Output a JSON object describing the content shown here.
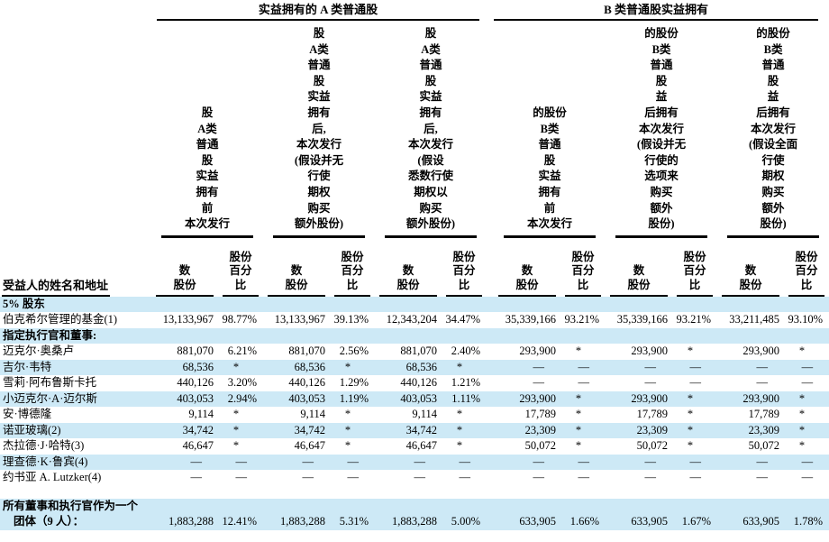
{
  "colors": {
    "row_stripe": "#cde9f6",
    "text": "#000000",
    "background": "#ffffff"
  },
  "table": {
    "group_a_title": "实益拥有的 A 类普通股",
    "group_b_title": "B 类普通股实益拥有",
    "columns": [
      {
        "id": "class-a-before-offering",
        "header_lines": [
          "股",
          "A类",
          "普通",
          "股",
          "实益",
          "拥有",
          "前",
          "本次发行"
        ]
      },
      {
        "id": "class-a-after-no-option-exercise",
        "header_lines": [
          "股",
          "A类",
          "普通",
          "股",
          "实益",
          "拥有",
          "后,",
          "本次发行",
          "(假设并无",
          "行使",
          "期权",
          "购买",
          "额外股份)"
        ]
      },
      {
        "id": "class-a-after-full-option-exercise",
        "header_lines": [
          "股",
          "A类",
          "普通",
          "股",
          "实益",
          "拥有",
          "后,",
          "本次发行",
          "(假设",
          "悉数行使",
          "期权以",
          "购买",
          "额外股份)"
        ]
      },
      {
        "id": "class-b-before-offering",
        "header_lines": [
          "的股份",
          "B类",
          "普通",
          "股",
          "实益",
          "拥有",
          "前",
          "本次发行"
        ]
      },
      {
        "id": "class-b-after-no-option-exercise",
        "header_lines": [
          "的股份",
          "B类",
          "普通",
          "股",
          "益",
          "后拥有",
          "本次发行",
          "(假设并无",
          "行使的",
          "选项来",
          "购买",
          "额外",
          "股份)"
        ]
      },
      {
        "id": "class-b-after-full-option-exercise",
        "header_lines": [
          "的股份",
          "B类",
          "普通",
          "股",
          "益",
          "后拥有",
          "本次发行",
          "(假设全面",
          "行使",
          "期权",
          "购买",
          "额外",
          "股份)"
        ]
      }
    ],
    "subheaders": {
      "name": "受益人的姓名和地址",
      "num_lines": [
        "数",
        "股份"
      ],
      "pct_lines": [
        "股份",
        "百分",
        "比"
      ]
    },
    "rows": [
      {
        "type": "section",
        "label": "5% 股东",
        "shaded": true
      },
      {
        "type": "data",
        "label": "伯克希尔管理的基金(1)",
        "shaded": false,
        "values": [
          "13,133,967",
          "98.77%",
          "13,133,967",
          "39.13%",
          "12,343,204",
          "34.47%",
          "35,339,166",
          "93.21%",
          "35,339,166",
          "93.21%",
          "33,211,485",
          "93.10%"
        ]
      },
      {
        "type": "section",
        "label": "指定执行官和董事:",
        "shaded": true
      },
      {
        "type": "data",
        "label": "迈克尔·奥桑卢",
        "shaded": false,
        "values": [
          "881,070",
          "6.21%",
          "881,070",
          "2.56%",
          "881,070",
          "2.40%",
          "293,900",
          "*",
          "293,900",
          "*",
          "293,900",
          "*"
        ]
      },
      {
        "type": "data",
        "label": "吉尔·韦特",
        "shaded": true,
        "values": [
          "68,536",
          "*",
          "68,536",
          "*",
          "68,536",
          "*",
          "—",
          "—",
          "—",
          "—",
          "—",
          "—"
        ]
      },
      {
        "type": "data",
        "label": "雪莉·阿布鲁斯卡托",
        "shaded": false,
        "values": [
          "440,126",
          "3.20%",
          "440,126",
          "1.29%",
          "440,126",
          "1.21%",
          "—",
          "—",
          "—",
          "—",
          "—",
          "—"
        ]
      },
      {
        "type": "data",
        "label": "小迈克尔·A·迈尔斯",
        "shaded": true,
        "values": [
          "403,053",
          "2.94%",
          "403,053",
          "1.19%",
          "403,053",
          "1.11%",
          "293,900",
          "*",
          "293,900",
          "*",
          "293,900",
          "*"
        ]
      },
      {
        "type": "data",
        "label": "安·博德隆",
        "shaded": false,
        "values": [
          "9,114",
          "*",
          "9,114",
          "*",
          "9,114",
          "*",
          "17,789",
          "*",
          "17,789",
          "*",
          "17,789",
          "*"
        ]
      },
      {
        "type": "data",
        "label": "诺亚玻璃(2)",
        "shaded": true,
        "values": [
          "34,742",
          "*",
          "34,742",
          "*",
          "34,742",
          "*",
          "23,309",
          "*",
          "23,309",
          "*",
          "23,309",
          "*"
        ]
      },
      {
        "type": "data",
        "label": "杰拉德·J·哈特(3)",
        "shaded": false,
        "values": [
          "46,647",
          "*",
          "46,647",
          "*",
          "46,647",
          "*",
          "50,072",
          "*",
          "50,072",
          "*",
          "50,072",
          "*"
        ]
      },
      {
        "type": "data",
        "label": "理查德·K·鲁宾(4)",
        "shaded": true,
        "values": [
          "—",
          "—",
          "—",
          "—",
          "—",
          "—",
          "—",
          "—",
          "—",
          "—",
          "—",
          "—"
        ]
      },
      {
        "type": "data",
        "label": "约书亚 A. Lutzker(4)",
        "shaded": false,
        "values": [
          "—",
          "—",
          "—",
          "—",
          "—",
          "—",
          "—",
          "—",
          "—",
          "—",
          "—",
          "—"
        ]
      },
      {
        "type": "spacer"
      },
      {
        "type": "total",
        "label_lines": [
          "所有董事和执行官作为一个",
          "团体（9 人）："
        ],
        "shaded": true,
        "values": [
          "1,883,288",
          "12.41%",
          "1,883,288",
          "5.31%",
          "1,883,288",
          "5.00%",
          "633,905",
          "1.66%",
          "633,905",
          "1.67%",
          "633,905",
          "1.78%"
        ]
      }
    ]
  }
}
